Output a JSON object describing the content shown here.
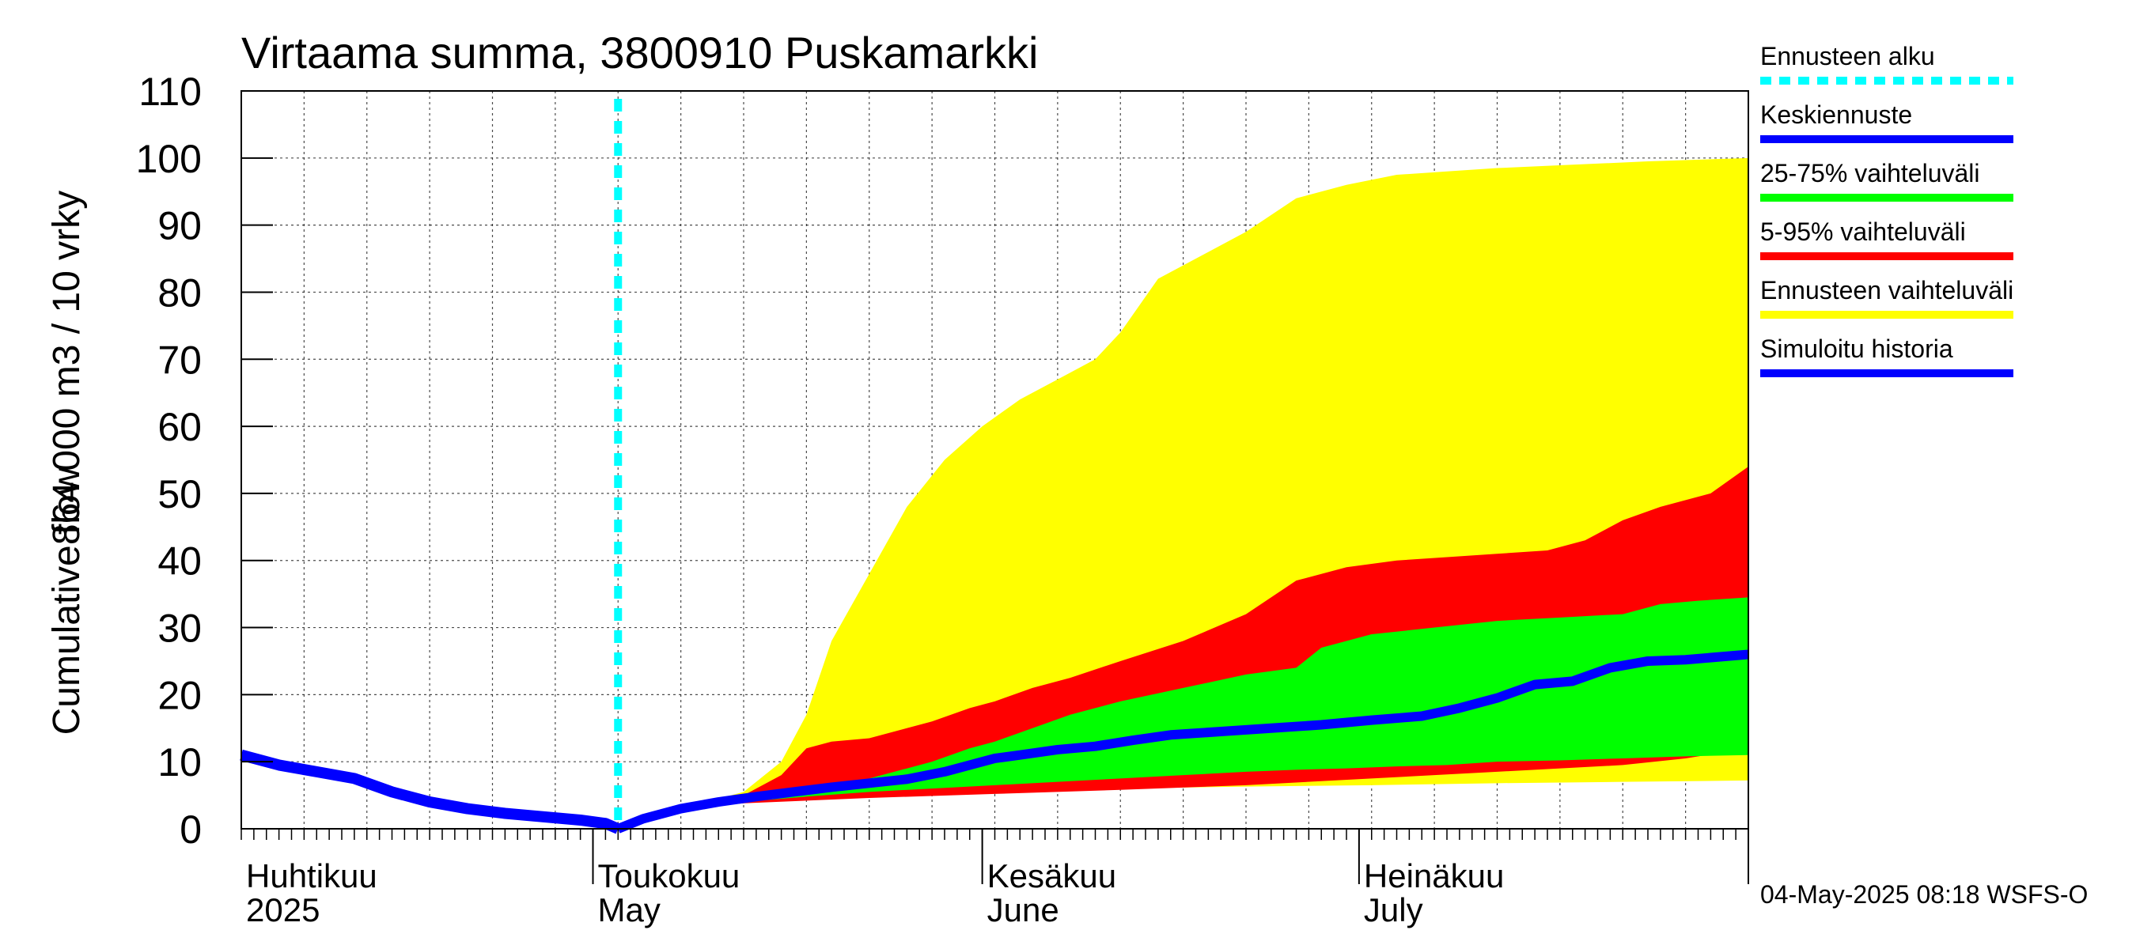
{
  "chart_data": {
    "type": "area",
    "title": "Virtaama summa, 3800910 Puskamarkki",
    "ylabel_line1": "Cumulative flow",
    "ylabel_line2": "864 000 m3 / 10 vrky",
    "ylim": [
      0,
      110
    ],
    "yticks": [
      0,
      10,
      20,
      30,
      40,
      50,
      60,
      70,
      80,
      90,
      100,
      110
    ],
    "xlim_days": [
      0,
      120
    ],
    "forecast_start_day": 30,
    "month_labels": [
      {
        "day": 0,
        "fi": "Huhtikuu",
        "en": "2025"
      },
      {
        "day": 28,
        "fi": "Toukokuu",
        "en": "May"
      },
      {
        "day": 59,
        "fi": "Kesäkuu",
        "en": "June"
      },
      {
        "day": 89,
        "fi": "Heinäkuu",
        "en": "July"
      }
    ],
    "legend": [
      {
        "label": "Ennusteen alku",
        "color": "#00ffff",
        "dashed": true
      },
      {
        "label": "Keskiennuste",
        "color": "#0000ff",
        "dashed": false
      },
      {
        "label": "25-75% vaihteluväli",
        "color": "#00ff00",
        "dashed": false
      },
      {
        "label": "5-95% vaihteluväli",
        "color": "#ff0000",
        "dashed": false
      },
      {
        "label": "Ennusteen vaihteluväli",
        "color": "#ffff00",
        "dashed": false
      },
      {
        "label": "Simuloitu historia",
        "color": "#0000ff",
        "dashed": false
      }
    ],
    "colors": {
      "yellow": "#ffff00",
      "red": "#ff0000",
      "green": "#00ff00",
      "blue": "#0000ff",
      "cyan": "#00ffff",
      "grid": "#000000"
    },
    "series": {
      "history": {
        "x": [
          0,
          3,
          6,
          9,
          12,
          15,
          18,
          21,
          24,
          27,
          29,
          30
        ],
        "y": [
          11,
          9.5,
          8.5,
          7.5,
          5.5,
          4,
          3,
          2.3,
          1.8,
          1.3,
          0.8,
          0
        ]
      },
      "median": {
        "x": [
          30,
          32,
          35,
          38,
          41,
          44,
          47,
          50,
          53,
          56,
          58,
          60,
          62,
          65,
          68,
          71,
          74,
          78,
          82,
          86,
          90,
          94,
          97,
          100,
          103,
          106,
          109,
          112,
          115,
          120
        ],
        "y": [
          0,
          1.5,
          3,
          4,
          4.8,
          5.5,
          6.2,
          6.8,
          7.4,
          8.5,
          9.5,
          10.5,
          11,
          11.8,
          12.3,
          13.2,
          14,
          14.5,
          15,
          15.5,
          16.2,
          16.8,
          18,
          19.5,
          21.5,
          22,
          24,
          25,
          25.2,
          26
        ]
      },
      "min": {
        "x": [
          30,
          35,
          40,
          45,
          50,
          60,
          70,
          80,
          90,
          100,
          110,
          120
        ],
        "y": [
          0,
          3,
          4,
          4.5,
          5,
          5.5,
          6,
          6.3,
          6.5,
          6.8,
          7,
          7.2
        ]
      },
      "max": {
        "x": [
          30,
          35,
          40,
          43,
          45,
          47,
          50,
          53,
          56,
          59,
          62,
          65,
          68,
          70,
          73,
          77,
          80,
          84,
          88,
          92,
          96,
          100,
          106,
          112,
          120
        ],
        "y": [
          0,
          3,
          5.5,
          10,
          17,
          28,
          38,
          48,
          55,
          60,
          64,
          67,
          70,
          74,
          82,
          86,
          89,
          94,
          96,
          97.5,
          98,
          98.5,
          99,
          99.5,
          100
        ]
      },
      "p5": {
        "x": [
          30,
          35,
          40,
          45,
          50,
          60,
          70,
          80,
          90,
          100,
          110,
          115,
          120
        ],
        "y": [
          0,
          3,
          3.8,
          4.2,
          4.6,
          5.2,
          5.8,
          6.5,
          7.5,
          8.5,
          9.5,
          10.5,
          12
        ]
      },
      "p95": {
        "x": [
          30,
          35,
          40,
          43,
          45,
          47,
          50,
          55,
          58,
          60,
          63,
          66,
          70,
          75,
          80,
          84,
          88,
          92,
          96,
          100,
          104,
          107,
          110,
          113,
          117,
          120
        ],
        "y": [
          0,
          3,
          5,
          8,
          12,
          13,
          13.5,
          16,
          18,
          19,
          21,
          22.5,
          25,
          28,
          32,
          37,
          39,
          40,
          40.5,
          41,
          41.5,
          43,
          46,
          48,
          50,
          54
        ]
      },
      "p25": {
        "x": [
          30,
          35,
          40,
          45,
          50,
          55,
          60,
          65,
          70,
          75,
          80,
          84,
          88,
          92,
          96,
          100,
          105,
          110,
          115,
          120
        ],
        "y": [
          0,
          3,
          4,
          4.8,
          5.5,
          6,
          6.5,
          7,
          7.5,
          8,
          8.5,
          8.8,
          9,
          9.3,
          9.5,
          10,
          10.2,
          10.5,
          10.8,
          11
        ]
      },
      "p75": {
        "x": [
          30,
          35,
          40,
          45,
          50,
          55,
          58,
          60,
          63,
          66,
          70,
          75,
          80,
          84,
          86,
          88,
          90,
          95,
          100,
          105,
          110,
          113,
          116,
          120
        ],
        "y": [
          0,
          3,
          4.5,
          6,
          7.5,
          10,
          12,
          13,
          15,
          17,
          19,
          21,
          23,
          24,
          27,
          28,
          29,
          30,
          31,
          31.5,
          32,
          33.5,
          34,
          34.5
        ]
      }
    }
  },
  "footer_text": "04-May-2025 08:18 WSFS-O"
}
